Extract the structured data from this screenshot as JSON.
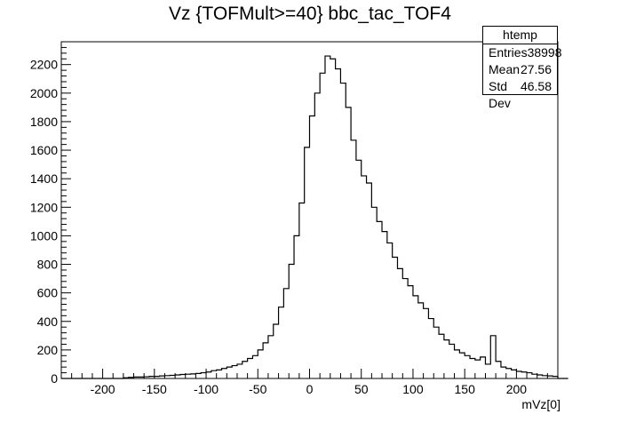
{
  "chart_data": {
    "type": "bar",
    "title": "Vz {TOFMult>=40} bbc_tac_TOF4",
    "xlabel": "mVz[0]",
    "ylabel": "",
    "xlim": [
      -240,
      240
    ],
    "ylim": [
      0,
      2360
    ],
    "x_ticks": [
      -200,
      -150,
      -100,
      -50,
      0,
      50,
      100,
      150,
      200
    ],
    "y_ticks": [
      0,
      200,
      400,
      600,
      800,
      1000,
      1200,
      1400,
      1600,
      1800,
      2000,
      2200
    ],
    "bin_width": 5,
    "bin_start": -240,
    "values": [
      0,
      0,
      0,
      0,
      0,
      0,
      0,
      0,
      0,
      0,
      0,
      0,
      5,
      8,
      10,
      10,
      12,
      15,
      15,
      18,
      20,
      22,
      25,
      28,
      30,
      32,
      35,
      40,
      45,
      55,
      60,
      70,
      80,
      90,
      100,
      120,
      140,
      160,
      200,
      250,
      300,
      380,
      500,
      630,
      800,
      1000,
      1230,
      1620,
      1840,
      2000,
      2140,
      2260,
      2240,
      2170,
      2070,
      1900,
      1670,
      1530,
      1420,
      1370,
      1200,
      1100,
      1030,
      950,
      850,
      770,
      700,
      650,
      580,
      530,
      490,
      420,
      360,
      310,
      270,
      240,
      200,
      180,
      160,
      140,
      130,
      150,
      100,
      300,
      120,
      80,
      70,
      60,
      50,
      45,
      40,
      30,
      25,
      20,
      18,
      15,
      0,
      0
    ]
  },
  "stats": {
    "title": "htemp",
    "rows": [
      {
        "label": "Entries",
        "value": "38998"
      },
      {
        "label": "Mean",
        "value": "27.56"
      },
      {
        "label": "Std Dev",
        "value": "46.58"
      }
    ]
  }
}
